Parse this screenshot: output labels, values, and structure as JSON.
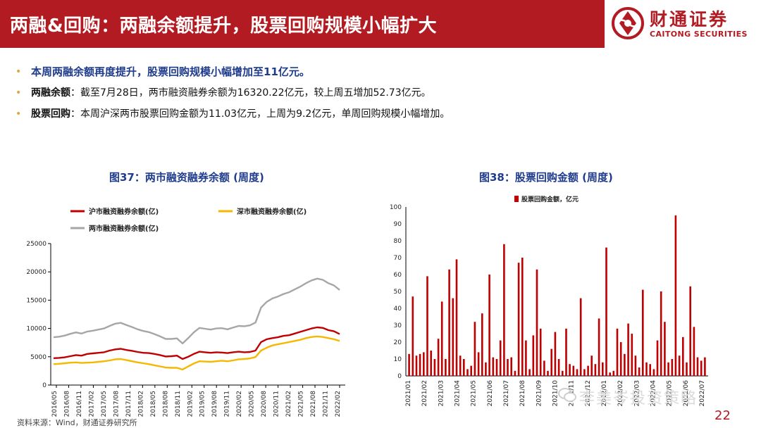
{
  "header": {
    "title": "两融&回购：两融余额提升，股票回购规模小幅扩大",
    "logo_cn": "财通证券",
    "logo_en": "CAITONG SECURITIES"
  },
  "bullets": [
    {
      "label": "",
      "text": "本周两融余额再度提升，股票回购规模小幅增加至11亿元。"
    },
    {
      "label": "两融余额",
      "text": "：截至7月28日，两市融资融券余额为16320.22亿元，较上周五增加52.73亿元。"
    },
    {
      "label": "股票回购",
      "text": "：本周沪深两市股票回购金额为11.03亿元，上周为9.2亿元，单周回购规模小幅增加。"
    }
  ],
  "source_text": "资料来源：Wind，财通证券研究所",
  "watermark": "李美岑投资策略",
  "page_number": "22",
  "colors": {
    "brand": "#b31b22",
    "caption": "#1f3c8c",
    "bullet": "#e2a63a"
  },
  "chart_data": [
    {
      "type": "line",
      "title": "图37：两市融资融券余额 (周度)",
      "ylim": [
        0,
        25000
      ],
      "yticks": [
        "0",
        "5000",
        "10000",
        "15000",
        "20000",
        "25000"
      ],
      "xticks": [
        "2016/05",
        "2016/08",
        "2016/11",
        "2017/02",
        "2017/05",
        "2017/08",
        "2017/11",
        "2018/02",
        "2018/05",
        "2018/08",
        "2018/11",
        "2019/02",
        "2019/05",
        "2019/08",
        "2019/11",
        "2020/02",
        "2020/05",
        "2020/08",
        "2020/11",
        "2021/02",
        "2021/05",
        "2021/08",
        "2021/11",
        "2022/02"
      ],
      "series": [
        {
          "name": "沪市融资融券余额(亿)",
          "color": "#c00000",
          "values": [
            4750,
            4800,
            4900,
            5100,
            5300,
            5200,
            5500,
            5600,
            5700,
            5800,
            6100,
            6300,
            6400,
            6200,
            6050,
            5850,
            5700,
            5650,
            5500,
            5300,
            5050,
            5100,
            5200,
            4600,
            5000,
            5500,
            5900,
            5800,
            5700,
            5800,
            5750,
            5650,
            5800,
            5900,
            5800,
            5850,
            6100,
            7600,
            8100,
            8300,
            8450,
            8700,
            8800,
            9100,
            9400,
            9700,
            10000,
            10200,
            10100,
            9700,
            9500,
            9000
          ]
        },
        {
          "name": "深市融资融券余额(亿)",
          "color": "#f5b800",
          "values": [
            3700,
            3750,
            3850,
            3950,
            4000,
            3900,
            3950,
            4000,
            4100,
            4200,
            4350,
            4550,
            4600,
            4400,
            4200,
            4000,
            3850,
            3700,
            3500,
            3300,
            3100,
            3050,
            3050,
            2750,
            3300,
            3800,
            4200,
            4150,
            4100,
            4200,
            4300,
            4200,
            4350,
            4550,
            4600,
            4700,
            4950,
            6100,
            6600,
            7000,
            7200,
            7400,
            7600,
            7800,
            8000,
            8300,
            8500,
            8600,
            8500,
            8300,
            8100,
            7800
          ]
        },
        {
          "name": "两市融资融券余额(亿)",
          "color": "#a6a6a6",
          "values": [
            8450,
            8550,
            8750,
            9050,
            9300,
            9100,
            9450,
            9600,
            9800,
            10000,
            10450,
            10850,
            11000,
            10600,
            10250,
            9850,
            9550,
            9350,
            9000,
            8600,
            8150,
            8150,
            8250,
            7350,
            8300,
            9300,
            10100,
            9950,
            9800,
            10000,
            10050,
            9850,
            10150,
            10450,
            10400,
            10550,
            11050,
            13700,
            14700,
            15300,
            15650,
            16100,
            16400,
            16900,
            17400,
            18000,
            18500,
            18800,
            18600,
            18000,
            17600,
            16800
          ]
        }
      ]
    },
    {
      "type": "bar",
      "title": "图38：股票回购金额 (周度)",
      "ylim": [
        0,
        100
      ],
      "yticks": [
        "0",
        "10",
        "20",
        "30",
        "40",
        "50",
        "60",
        "70",
        "80",
        "90",
        "100"
      ],
      "xticks": [
        "2021/01",
        "2021/02",
        "2021/03",
        "2021/04",
        "2021/05",
        "2021/06",
        "2021/07",
        "2021/08",
        "2021/09",
        "2021/10",
        "2021/11",
        "2021/12",
        "2022/01",
        "2022/02",
        "2022/03",
        "2022/04",
        "2022/05",
        "2022/06",
        "2022/07"
      ],
      "series": [
        {
          "name": "股票回购金额，亿元",
          "color": "#c00000",
          "values": [
            13,
            47,
            12,
            13,
            14,
            59,
            15,
            10,
            22,
            44,
            10,
            63,
            46,
            69,
            12,
            10,
            4,
            6,
            32,
            14,
            37,
            8,
            60,
            11,
            10,
            21,
            78,
            10,
            11,
            3,
            67,
            70,
            21,
            4,
            24,
            63,
            28,
            9,
            3,
            16,
            26,
            10,
            3,
            28,
            7,
            6,
            4,
            46,
            4,
            6,
            12,
            7,
            34,
            8,
            76,
            2,
            3,
            28,
            20,
            13,
            31,
            25,
            12,
            5,
            51,
            8,
            7,
            4,
            21,
            50,
            32,
            8,
            10,
            95,
            12,
            23,
            8,
            53,
            29,
            11,
            9,
            11
          ]
        }
      ]
    }
  ]
}
